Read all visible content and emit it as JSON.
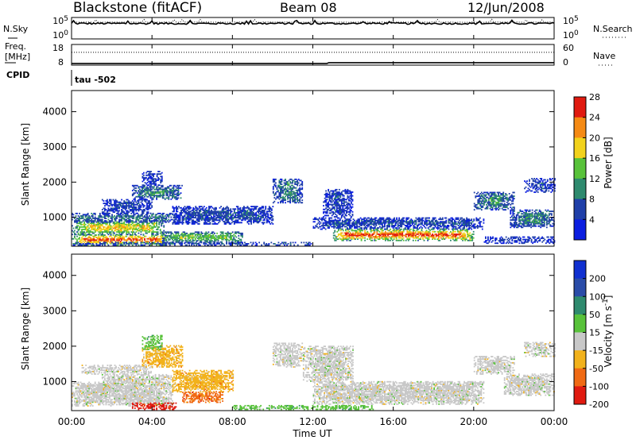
{
  "header": {
    "station": "Blackstone (fitACF)",
    "beam": "Beam 08",
    "date": "12/Jun/2008"
  },
  "noise_panel": {
    "left_label": "N.Sky",
    "right_label": "N.Search",
    "left_ticks": [
      "10^5",
      "10^0"
    ],
    "right_ticks": [
      "10^5",
      "10^0"
    ]
  },
  "freq_panel": {
    "left_label_1": "Freq.",
    "left_label_2": "[MHz]",
    "left_ticks": [
      "18",
      "8"
    ],
    "right_label": "Nave",
    "right_ticks": [
      "60",
      "0"
    ]
  },
  "cpid_panel": {
    "label": "CPID",
    "value_text": "tau -502"
  },
  "time_axis": {
    "label": "Time UT",
    "ticks": [
      "00:00",
      "04:00",
      "08:00",
      "12:00",
      "16:00",
      "20:00",
      "00:00"
    ]
  },
  "chart_data": [
    {
      "type": "heatmap",
      "title": "Power",
      "ylabel": "Slant Range [km]",
      "xlabel": "Time UT",
      "ylim": [
        180,
        4600
      ],
      "xlim": [
        0,
        24
      ],
      "yticks": [
        1000,
        2000,
        3000,
        4000
      ],
      "colorbar": {
        "label": "Power [dB]",
        "ticks": [
          "4",
          "8",
          "12",
          "16",
          "20",
          "24",
          "28"
        ],
        "colors": [
          "#0b1ee0",
          "#1f3fa8",
          "#2e8a6e",
          "#58c23a",
          "#f2d21c",
          "#f58a14",
          "#e01a10"
        ],
        "range": [
          0,
          30
        ]
      },
      "regions": [
        {
          "t": [
            0.0,
            4.8
          ],
          "r": [
            200,
            500
          ],
          "level": 6
        },
        {
          "t": [
            0.0,
            4.6
          ],
          "r": [
            500,
            900
          ],
          "level": 4
        },
        {
          "t": [
            0.0,
            5.2
          ],
          "r": [
            850,
            1100
          ],
          "level": 2
        },
        {
          "t": [
            1.5,
            4.0
          ],
          "r": [
            1100,
            1500
          ],
          "level": 1
        },
        {
          "t": [
            3.0,
            5.5
          ],
          "r": [
            1500,
            1900
          ],
          "level": 2
        },
        {
          "t": [
            3.5,
            4.5
          ],
          "r": [
            1900,
            2300
          ],
          "level": 1
        },
        {
          "t": [
            5.0,
            10.0
          ],
          "r": [
            800,
            1300
          ],
          "level": 1
        },
        {
          "t": [
            4.5,
            8.5
          ],
          "r": [
            250,
            600
          ],
          "level": 3
        },
        {
          "t": [
            0.0,
            12.0
          ],
          "r": [
            200,
            300
          ],
          "level": 2
        },
        {
          "t": [
            10.0,
            11.5
          ],
          "r": [
            1400,
            2100
          ],
          "level": 2
        },
        {
          "t": [
            12.0,
            20.5
          ],
          "r": [
            650,
            1000
          ],
          "level": 1
        },
        {
          "t": [
            13.0,
            20.0
          ],
          "r": [
            330,
            650
          ],
          "level": 6
        },
        {
          "t": [
            12.5,
            14.0
          ],
          "r": [
            1000,
            1800
          ],
          "level": 1
        },
        {
          "t": [
            20.0,
            22.0
          ],
          "r": [
            1200,
            1700
          ],
          "level": 2
        },
        {
          "t": [
            21.8,
            24.0
          ],
          "r": [
            700,
            1200
          ],
          "level": 2
        },
        {
          "t": [
            22.5,
            24.0
          ],
          "r": [
            1700,
            2100
          ],
          "level": 1
        },
        {
          "t": [
            20.5,
            24.0
          ],
          "r": [
            250,
            450
          ],
          "level": 1
        }
      ]
    },
    {
      "type": "heatmap",
      "title": "Velocity",
      "ylabel": "Slant Range [km]",
      "xlabel": "Time UT",
      "ylim": [
        180,
        4600
      ],
      "xlim": [
        0,
        24
      ],
      "yticks": [
        1000,
        2000,
        3000,
        4000
      ],
      "colorbar": {
        "label": "Velocity [m s^-1]",
        "ticks": [
          "200",
          "100",
          "50",
          "15",
          "-15",
          "-50",
          "-100",
          "-200"
        ],
        "colors": [
          "#1030d0",
          "#2a4ca8",
          "#2e8a6e",
          "#58c23a",
          "#c8c8c8",
          "#f2b21c",
          "#f06a14",
          "#e01a10"
        ],
        "range": [
          -250,
          250
        ]
      },
      "regions": [
        {
          "t": [
            0.0,
            5.0
          ],
          "r": [
            300,
            1000
          ],
          "level": 4
        },
        {
          "t": [
            0.5,
            4.0
          ],
          "r": [
            1200,
            1450
          ],
          "level": 4
        },
        {
          "t": [
            1.5,
            5.0
          ],
          "r": [
            900,
            1200
          ],
          "level": 4
        },
        {
          "t": [
            3.0,
            5.2
          ],
          "r": [
            200,
            400
          ],
          "level": 7
        },
        {
          "t": [
            3.5,
            5.5
          ],
          "r": [
            1400,
            2000
          ],
          "level": 5
        },
        {
          "t": [
            5.0,
            8.0
          ],
          "r": [
            700,
            1300
          ],
          "level": 5
        },
        {
          "t": [
            5.5,
            7.5
          ],
          "r": [
            400,
            700
          ],
          "level": 6
        },
        {
          "t": [
            3.5,
            4.5
          ],
          "r": [
            1900,
            2300
          ],
          "level": 3
        },
        {
          "t": [
            8.0,
            15.0
          ],
          "r": [
            200,
            320
          ],
          "level": 3
        },
        {
          "t": [
            10.0,
            11.5
          ],
          "r": [
            1400,
            2100
          ],
          "level": 4
        },
        {
          "t": [
            12.0,
            20.5
          ],
          "r": [
            350,
            1000
          ],
          "level": 4
        },
        {
          "t": [
            11.5,
            14.0
          ],
          "r": [
            1000,
            2000
          ],
          "level": 4
        },
        {
          "t": [
            20.0,
            22.0
          ],
          "r": [
            1200,
            1700
          ],
          "level": 4
        },
        {
          "t": [
            21.5,
            24.0
          ],
          "r": [
            600,
            1200
          ],
          "level": 4
        },
        {
          "t": [
            22.5,
            24.0
          ],
          "r": [
            1700,
            2100
          ],
          "level": 4
        }
      ]
    }
  ],
  "series_params": {
    "noise_sky_level": 0.72,
    "noise_search_level": 0.78,
    "freq_level": 0.08,
    "freq_step_time": 12.8,
    "freq_level_after": 0.12,
    "nave_level": 0.62
  }
}
